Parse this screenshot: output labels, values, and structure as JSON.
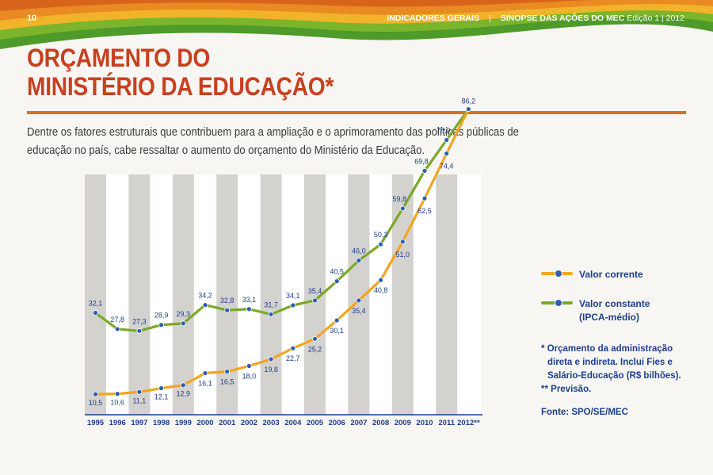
{
  "header": {
    "page_number": "10",
    "section": "INDICADORES GERAIS",
    "separator": "|",
    "publication": "SINOPSE DAS AÇÕES DO MEC",
    "edition": "Edição 1 | 2012"
  },
  "title": {
    "line1": "ORÇAMENTO DO",
    "line2": "MINISTÉRIO DA EDUCAÇÃO*"
  },
  "intro": "Dentre os fatores estruturais que contribuem para a ampliação e o aprimoramento das políticas públicas de educação no país, cabe ressaltar o aumento do orçamento do Ministério da Educação.",
  "colors": {
    "corrente": "#f2a51f",
    "constante": "#7aaa25",
    "marker": "#2d5fb3",
    "text": "#1c3f8c",
    "title": "#c8401f",
    "stripe": "#d4d2cf"
  },
  "legend": {
    "corrente": "Valor corrente",
    "constante_line1": "Valor constante",
    "constante_line2": "(IPCA-médio)"
  },
  "notes": {
    "line1": "* Orçamento da administração",
    "line2": "direta e indireta. Inclui Fies e",
    "line3": "Salário-Educação (R$ bilhões).",
    "line4": "** Previsão."
  },
  "source": "Fonte: SPO/SE/MEC",
  "chart_data": {
    "type": "line",
    "categories": [
      "1995",
      "1996",
      "1997",
      "1998",
      "1999",
      "2000",
      "2001",
      "2002",
      "2003",
      "2004",
      "2005",
      "2006",
      "2007",
      "2008",
      "2009",
      "2010",
      "2011",
      "2012**"
    ],
    "series": [
      {
        "name": "Valor corrente",
        "values": [
          10.5,
          10.6,
          11.1,
          12.1,
          12.9,
          16.1,
          16.5,
          18.0,
          19.8,
          22.7,
          25.2,
          30.1,
          35.4,
          40.8,
          51.0,
          62.5,
          74.4,
          86.2
        ]
      },
      {
        "name": "Valor constante (IPCA-médio)",
        "values": [
          32.1,
          27.8,
          27.3,
          28.9,
          29.3,
          34.2,
          32.8,
          33.1,
          31.7,
          34.1,
          35.4,
          40.5,
          46.0,
          50.3,
          59.8,
          69.8,
          78.0,
          86.2
        ]
      }
    ],
    "labels_corrente": [
      "10,5",
      "10,6",
      "11,1",
      "12,1",
      "12,9",
      "16,1",
      "16,5",
      "18,0",
      "19,8",
      "22,7",
      "25,2",
      "30,1",
      "35,4",
      "40,8",
      "51,0",
      "62,5",
      "74,4",
      ""
    ],
    "labels_constante": [
      "32,1",
      "27,8",
      "27,3",
      "28,9",
      "29,3",
      "34,2",
      "32,8",
      "33,1",
      "31,7",
      "34,1",
      "35,4",
      "40,5",
      "46,0",
      "50,3",
      "59,8",
      "69,8",
      "78,0",
      "86,2"
    ],
    "ylim": [
      0,
      100
    ],
    "grid": false,
    "legend_position": "right"
  }
}
